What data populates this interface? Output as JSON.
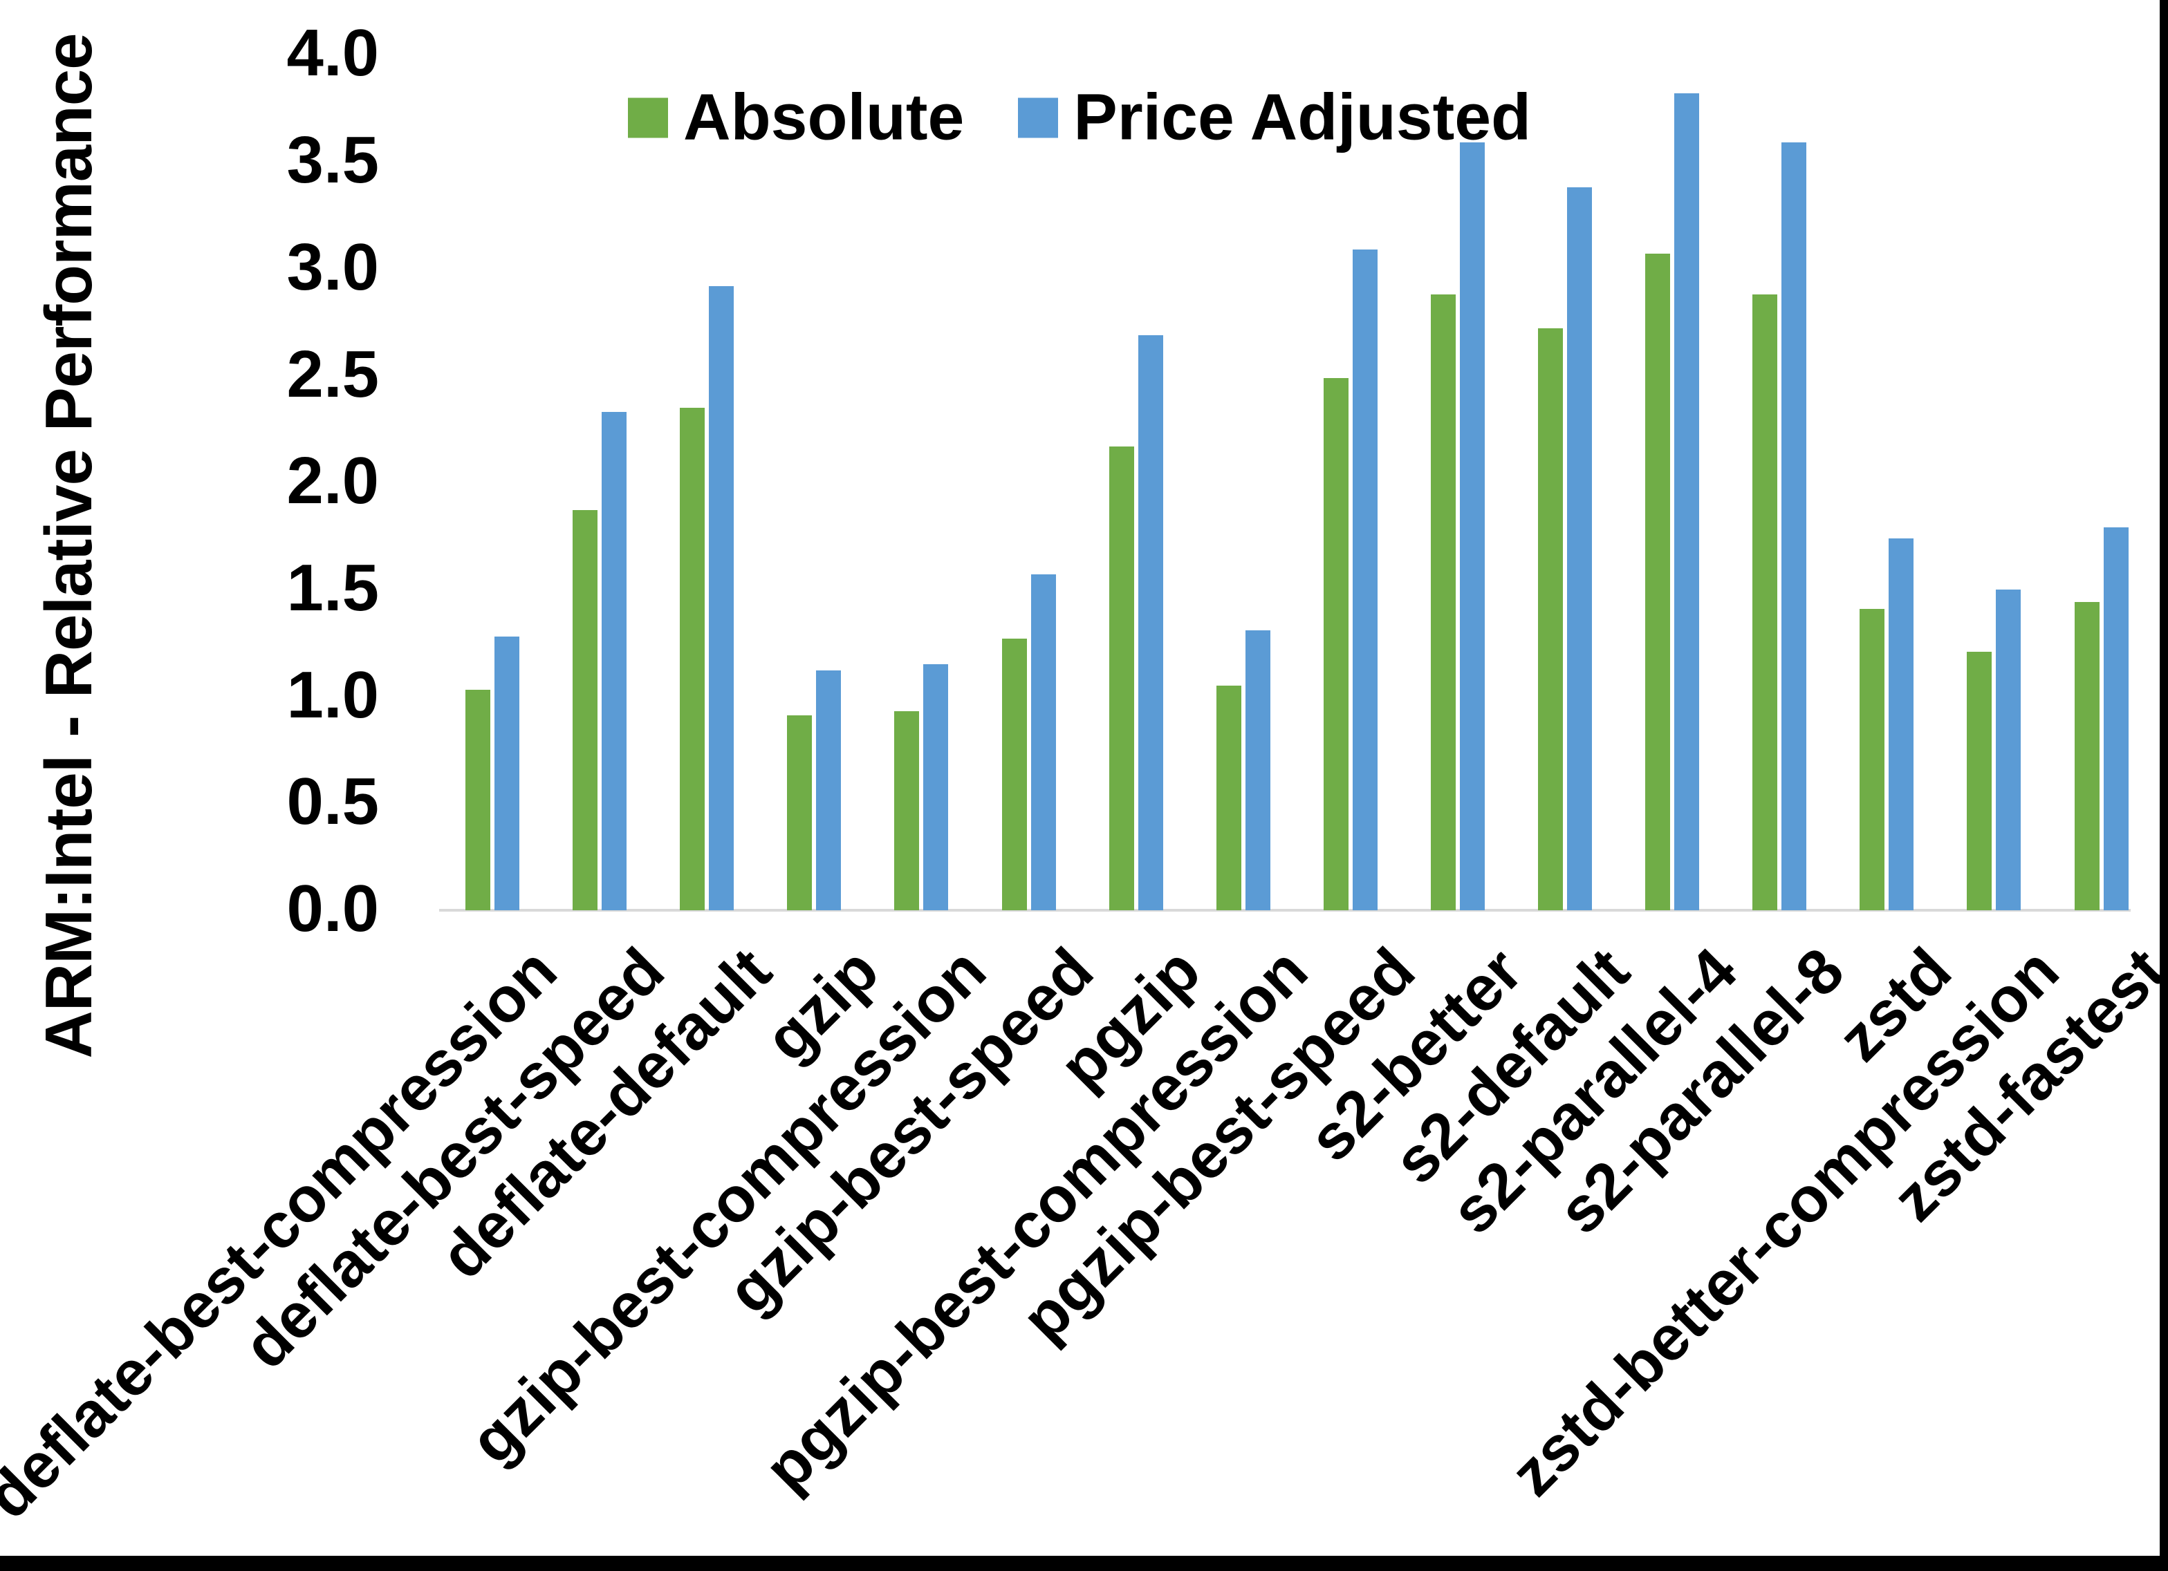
{
  "page": {
    "background": "#ffffff",
    "border_color": "#000000"
  },
  "chart_data": {
    "type": "bar",
    "title": "",
    "ylabel": "ARM:Intel - Relative Performance",
    "xlabel": "",
    "ylim": [
      0.0,
      4.0
    ],
    "ytick_step": 0.5,
    "ytick_labels": [
      "0.0",
      "0.5",
      "1.0",
      "1.5",
      "2.0",
      "2.5",
      "3.0",
      "3.5",
      "4.0"
    ],
    "grid": false,
    "legend_position": "top-center",
    "axis_line_color": "#D9D9D9",
    "categories": [
      "deflate-best-compression",
      "deflate-best-speed",
      "deflate-default",
      "gzip",
      "gzip-best-compression",
      "gzip-best-speed",
      "pgzip",
      "pgzip-best-compression",
      "pgzip-best-speed",
      "s2-better",
      "s2-default",
      "s2-parallel-4",
      "s2-parallel-8",
      "zstd",
      "zstd-better-compression",
      "zstd-fastest"
    ],
    "series": [
      {
        "name": "Absolute",
        "color": "#70AD47",
        "values": [
          1.03,
          1.87,
          2.35,
          0.91,
          0.93,
          1.27,
          2.17,
          1.05,
          2.49,
          2.88,
          2.72,
          3.07,
          2.88,
          1.41,
          1.21,
          1.44
        ]
      },
      {
        "name": "Price Adjusted",
        "color": "#5B9BD5",
        "values": [
          1.28,
          2.33,
          2.92,
          1.12,
          1.15,
          1.57,
          2.69,
          1.31,
          3.09,
          3.59,
          3.38,
          3.82,
          3.59,
          1.74,
          1.5,
          1.79
        ]
      }
    ]
  }
}
